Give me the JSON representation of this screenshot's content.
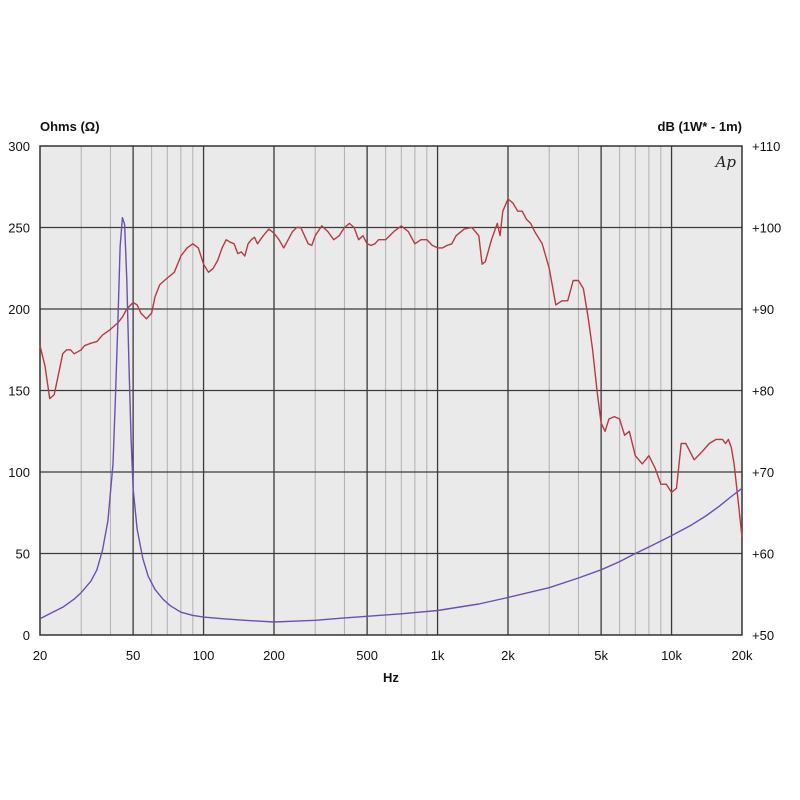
{
  "chart_data": {
    "type": "line",
    "left_axis_title": "Ohms (Ω)",
    "right_axis_title": "dB (1W* - 1m)",
    "xlabel": "Hz",
    "logo": "Ap",
    "x_scale": "log",
    "xlim": [
      20,
      20000
    ],
    "y_left_lim": [
      0,
      300
    ],
    "y_right_lim": [
      50,
      110
    ],
    "grid": true,
    "x_ticks": [
      {
        "value": 20,
        "label": "20"
      },
      {
        "value": 50,
        "label": "50"
      },
      {
        "value": 100,
        "label": "100"
      },
      {
        "value": 200,
        "label": "200"
      },
      {
        "value": 500,
        "label": "500"
      },
      {
        "value": 1000,
        "label": "1k"
      },
      {
        "value": 2000,
        "label": "2k"
      },
      {
        "value": 5000,
        "label": "5k"
      },
      {
        "value": 10000,
        "label": "10k"
      },
      {
        "value": 20000,
        "label": "20k"
      }
    ],
    "y_left_ticks": [
      {
        "value": 0,
        "label": "0"
      },
      {
        "value": 50,
        "label": "50"
      },
      {
        "value": 100,
        "label": "100"
      },
      {
        "value": 150,
        "label": "150"
      },
      {
        "value": 200,
        "label": "200"
      },
      {
        "value": 250,
        "label": "250"
      },
      {
        "value": 300,
        "label": "300"
      }
    ],
    "y_right_ticks": [
      {
        "value": 50,
        "label": "+50"
      },
      {
        "value": 60,
        "label": "+60"
      },
      {
        "value": 70,
        "label": "+70"
      },
      {
        "value": 80,
        "label": "+80"
      },
      {
        "value": 90,
        "label": "+90"
      },
      {
        "value": 100,
        "label": "+100"
      },
      {
        "value": 110,
        "label": "+110"
      }
    ],
    "colors": {
      "spl": "#b83a3f",
      "impedance": "#6b4fb3",
      "plot_bg": "#eaeaea",
      "major_grid": "#3a3a3a",
      "minor_grid": "#b0b0b0"
    },
    "series": [
      {
        "axis": "right",
        "color": "#b83a3f",
        "points": [
          [
            20,
            85.5
          ],
          [
            21,
            83
          ],
          [
            22,
            79
          ],
          [
            23,
            79.5
          ],
          [
            24,
            82
          ],
          [
            25,
            84.5
          ],
          [
            26,
            85
          ],
          [
            27,
            85
          ],
          [
            28,
            84.5
          ],
          [
            30,
            85
          ],
          [
            31,
            85.5
          ],
          [
            33,
            85.8
          ],
          [
            35,
            86
          ],
          [
            37,
            86.8
          ],
          [
            40,
            87.5
          ],
          [
            43,
            88.3
          ],
          [
            45,
            89
          ],
          [
            47,
            90
          ],
          [
            50,
            90.8
          ],
          [
            52,
            90.5
          ],
          [
            54,
            89.5
          ],
          [
            57,
            88.8
          ],
          [
            60,
            89.5
          ],
          [
            62,
            91.5
          ],
          [
            65,
            93
          ],
          [
            70,
            93.8
          ],
          [
            75,
            94.5
          ],
          [
            80,
            96.5
          ],
          [
            85,
            97.5
          ],
          [
            90,
            98
          ],
          [
            95,
            97.5
          ],
          [
            100,
            95.5
          ],
          [
            105,
            94.5
          ],
          [
            110,
            95
          ],
          [
            115,
            96
          ],
          [
            120,
            97.5
          ],
          [
            125,
            98.5
          ],
          [
            130,
            98.2
          ],
          [
            135,
            98
          ],
          [
            140,
            96.8
          ],
          [
            145,
            97
          ],
          [
            150,
            96.5
          ],
          [
            155,
            98
          ],
          [
            160,
            98.5
          ],
          [
            165,
            98.8
          ],
          [
            170,
            98
          ],
          [
            175,
            98.5
          ],
          [
            180,
            99
          ],
          [
            190,
            99.8
          ],
          [
            200,
            99.3
          ],
          [
            210,
            98.5
          ],
          [
            220,
            97.5
          ],
          [
            230,
            98.5
          ],
          [
            240,
            99.5
          ],
          [
            250,
            100
          ],
          [
            260,
            100
          ],
          [
            270,
            99
          ],
          [
            280,
            98
          ],
          [
            290,
            97.8
          ],
          [
            300,
            99
          ],
          [
            320,
            100.2
          ],
          [
            340,
            99.5
          ],
          [
            360,
            98.5
          ],
          [
            380,
            99
          ],
          [
            400,
            100
          ],
          [
            420,
            100.5
          ],
          [
            440,
            100
          ],
          [
            460,
            98.5
          ],
          [
            480,
            99
          ],
          [
            500,
            98
          ],
          [
            520,
            97.8
          ],
          [
            540,
            98
          ],
          [
            560,
            98.5
          ],
          [
            600,
            98.5
          ],
          [
            650,
            99.5
          ],
          [
            700,
            100.2
          ],
          [
            750,
            99.5
          ],
          [
            800,
            98
          ],
          [
            850,
            98.5
          ],
          [
            900,
            98.5
          ],
          [
            950,
            97.8
          ],
          [
            1000,
            97.5
          ],
          [
            1050,
            97.5
          ],
          [
            1100,
            97.8
          ],
          [
            1150,
            98
          ],
          [
            1200,
            99
          ],
          [
            1300,
            99.8
          ],
          [
            1400,
            100
          ],
          [
            1450,
            99.5
          ],
          [
            1500,
            99
          ],
          [
            1550,
            95.5
          ],
          [
            1600,
            95.8
          ],
          [
            1700,
            98.5
          ],
          [
            1800,
            100.5
          ],
          [
            1850,
            99
          ],
          [
            1900,
            102
          ],
          [
            2000,
            103.5
          ],
          [
            2100,
            103
          ],
          [
            2200,
            102
          ],
          [
            2300,
            102
          ],
          [
            2400,
            101
          ],
          [
            2500,
            100.5
          ],
          [
            2600,
            99.5
          ],
          [
            2800,
            98
          ],
          [
            3000,
            95
          ],
          [
            3200,
            90.5
          ],
          [
            3400,
            91
          ],
          [
            3600,
            91
          ],
          [
            3800,
            93.5
          ],
          [
            4000,
            93.5
          ],
          [
            4200,
            92.5
          ],
          [
            4400,
            89
          ],
          [
            4600,
            85
          ],
          [
            4800,
            80
          ],
          [
            5000,
            76
          ],
          [
            5200,
            75
          ],
          [
            5400,
            76.5
          ],
          [
            5700,
            76.8
          ],
          [
            6000,
            76.5
          ],
          [
            6300,
            74.5
          ],
          [
            6600,
            75
          ],
          [
            7000,
            72
          ],
          [
            7500,
            71
          ],
          [
            8000,
            72
          ],
          [
            8500,
            70.5
          ],
          [
            9000,
            68.5
          ],
          [
            9500,
            68.5
          ],
          [
            10000,
            67.5
          ],
          [
            10500,
            68
          ],
          [
            11000,
            73.5
          ],
          [
            11500,
            73.5
          ],
          [
            12500,
            71.5
          ],
          [
            13500,
            72.5
          ],
          [
            14500,
            73.5
          ],
          [
            15500,
            74
          ],
          [
            16500,
            74
          ],
          [
            17000,
            73.5
          ],
          [
            17500,
            74
          ],
          [
            18000,
            73
          ],
          [
            18500,
            71
          ],
          [
            19000,
            68
          ],
          [
            19500,
            65
          ],
          [
            20000,
            62
          ]
        ]
      },
      {
        "axis": "left",
        "color": "#6b4fb3",
        "points": [
          [
            20,
            10
          ],
          [
            22,
            13
          ],
          [
            25,
            17
          ],
          [
            28,
            22
          ],
          [
            30,
            26
          ],
          [
            33,
            33
          ],
          [
            35,
            40
          ],
          [
            37,
            52
          ],
          [
            39,
            70
          ],
          [
            41,
            105
          ],
          [
            42,
            145
          ],
          [
            43,
            190
          ],
          [
            44,
            238
          ],
          [
            45,
            256
          ],
          [
            46,
            252
          ],
          [
            47,
            218
          ],
          [
            48,
            165
          ],
          [
            49,
            120
          ],
          [
            50,
            90
          ],
          [
            52,
            65
          ],
          [
            55,
            47
          ],
          [
            58,
            36
          ],
          [
            62,
            28
          ],
          [
            67,
            22
          ],
          [
            72,
            18
          ],
          [
            80,
            14
          ],
          [
            90,
            12
          ],
          [
            100,
            11
          ],
          [
            120,
            10
          ],
          [
            150,
            9
          ],
          [
            200,
            8
          ],
          [
            250,
            8.5
          ],
          [
            300,
            9
          ],
          [
            400,
            10.5
          ],
          [
            500,
            11.5
          ],
          [
            700,
            13
          ],
          [
            1000,
            15
          ],
          [
            1500,
            19
          ],
          [
            2000,
            23
          ],
          [
            3000,
            29
          ],
          [
            4000,
            35
          ],
          [
            5000,
            40
          ],
          [
            6000,
            45
          ],
          [
            7000,
            50
          ],
          [
            8000,
            54
          ],
          [
            10000,
            61
          ],
          [
            12000,
            67
          ],
          [
            14000,
            73
          ],
          [
            16000,
            79
          ],
          [
            18000,
            85
          ],
          [
            20000,
            90
          ]
        ]
      }
    ]
  }
}
